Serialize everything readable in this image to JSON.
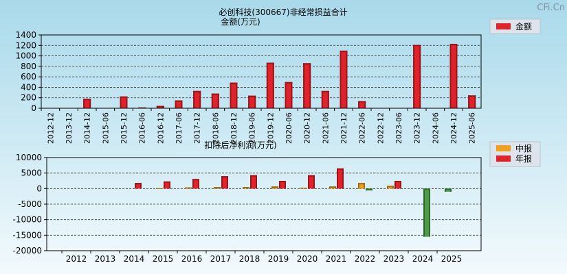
{
  "watermark": "CFi.Cn",
  "colors": {
    "bg_top": "#a9d9ea",
    "bg_bottom": "#f2fafd",
    "bar_red": "#e0232b",
    "bar_red_dark": "#9a151a",
    "bar_orange": "#f0a01c",
    "bar_orange_dark": "#a86a0a",
    "bar_green": "#4f9a4a",
    "bar_green_dark": "#2e6b2b",
    "grid": "#333333"
  },
  "chart_data": [
    {
      "type": "bar",
      "title": "必创科技(300667)非经常损益合计",
      "subtitle": "金额(万元)",
      "legend": [
        {
          "name": "金额",
          "color": "#e0232b"
        }
      ],
      "legend_position": "top-right",
      "grid": true,
      "ylim": [
        0,
        1400
      ],
      "yticks": [
        0,
        200,
        400,
        600,
        800,
        1000,
        1200,
        1400
      ],
      "categories": [
        "2012-12",
        "2013-12",
        "2014-12",
        "2015-06",
        "2015-12",
        "2016-06",
        "2016-12",
        "2017-06",
        "2017-12",
        "2018-06",
        "2018-12",
        "2019-06",
        "2019-12",
        "2020-06",
        "2020-12",
        "2021-06",
        "2021-12",
        "2022-06",
        "2022-12",
        "2023-06",
        "2023-12",
        "2024-06",
        "2024-12",
        "2025-06"
      ],
      "values": [
        null,
        null,
        180,
        null,
        225,
        15,
        45,
        150,
        330,
        280,
        490,
        240,
        870,
        500,
        860,
        330,
        1100,
        135,
        null,
        null,
        1210,
        null,
        1230,
        245
      ]
    },
    {
      "type": "bar",
      "title": "扣除后净利润(万元)",
      "legend": [
        {
          "name": "中报",
          "color": "#f0a01c"
        },
        {
          "name": "年报",
          "color": "#e0232b"
        }
      ],
      "legend_position": "top-right",
      "grid": true,
      "ylim": [
        -20000,
        10000
      ],
      "yticks": [
        -20000,
        -15000,
        -10000,
        -5000,
        0,
        5000,
        10000
      ],
      "categories": [
        "2012",
        "2013",
        "2014",
        "2015",
        "2016",
        "2017",
        "2018",
        "2019",
        "2020",
        "2021",
        "2022",
        "2023",
        "2024",
        "2025"
      ],
      "series": [
        {
          "name": "中报",
          "values": [
            null,
            null,
            null,
            100,
            400,
            500,
            500,
            700,
            300,
            700,
            1800,
            900,
            null,
            -1000
          ]
        },
        {
          "name": "年报",
          "values": [
            null,
            null,
            1800,
            2300,
            3100,
            4000,
            4300,
            2500,
            4300,
            6500,
            -600,
            2500,
            -15500,
            null
          ]
        }
      ]
    }
  ]
}
